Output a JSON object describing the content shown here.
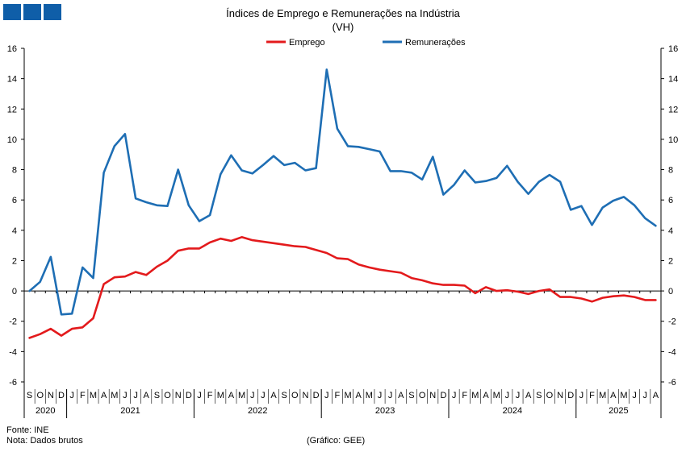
{
  "logo": {
    "squares": [
      "",
      "",
      ""
    ]
  },
  "header": {
    "title": "Índices de Emprego e Remunerações na Indústria",
    "subtitle": "(VH)"
  },
  "footer": {
    "source": "Fonte: INE",
    "note": "Nota: Dados brutos",
    "credit": "(Gráfico: GEE)"
  },
  "chart_data": {
    "type": "line",
    "title": "Índices de Emprego e Remunerações na Indústria",
    "subtitle": "(VH)",
    "xlabel": "",
    "ylabel": "",
    "ylim": [
      -6,
      16
    ],
    "yticks": [
      -6,
      -4,
      -2,
      0,
      2,
      4,
      6,
      8,
      10,
      12,
      14,
      16
    ],
    "legend_position": "top-center",
    "grid": false,
    "months": [
      "S",
      "O",
      "N",
      "D",
      "J",
      "F",
      "M",
      "A",
      "M",
      "J",
      "J",
      "A",
      "S",
      "O",
      "N",
      "D",
      "J",
      "F",
      "M",
      "A",
      "M",
      "J",
      "J",
      "A",
      "S",
      "O",
      "N",
      "D",
      "J",
      "F",
      "M",
      "A",
      "M",
      "J",
      "J",
      "A",
      "S",
      "O",
      "N",
      "D",
      "J",
      "F",
      "M",
      "A",
      "M",
      "J",
      "J",
      "A",
      "S",
      "O",
      "N",
      "D",
      "J",
      "F",
      "M",
      "A",
      "M",
      "J",
      "J",
      "A"
    ],
    "years": [
      {
        "label": "2020",
        "start": 0,
        "end": 3
      },
      {
        "label": "2021",
        "start": 4,
        "end": 15
      },
      {
        "label": "2022",
        "start": 16,
        "end": 27
      },
      {
        "label": "2023",
        "start": 28,
        "end": 39
      },
      {
        "label": "2024",
        "start": 40,
        "end": 51
      },
      {
        "label": "2025",
        "start": 52,
        "end": 59
      }
    ],
    "series": [
      {
        "name": "Emprego",
        "color": "#e31a1c",
        "values": [
          -3.1,
          -2.85,
          -2.5,
          -2.95,
          -2.5,
          -2.4,
          -1.8,
          0.45,
          0.9,
          0.95,
          1.25,
          1.05,
          1.6,
          2.0,
          2.65,
          2.8,
          2.8,
          3.2,
          3.45,
          3.3,
          3.55,
          3.35,
          3.25,
          3.15,
          3.05,
          2.95,
          2.9,
          2.7,
          2.5,
          2.15,
          2.1,
          1.75,
          1.55,
          1.4,
          1.3,
          1.2,
          0.85,
          0.7,
          0.5,
          0.4,
          0.4,
          0.35,
          -0.15,
          0.25,
          0.0,
          0.05,
          -0.05,
          -0.2,
          0.0,
          0.1,
          -0.4,
          -0.4,
          -0.5,
          -0.7,
          -0.45,
          -0.35,
          -0.3,
          -0.4,
          -0.6,
          -0.6
        ]
      },
      {
        "name": "Remunerações",
        "color": "#1e6eb4",
        "values": [
          0.0,
          0.6,
          2.25,
          -1.55,
          -1.5,
          1.55,
          0.85,
          7.8,
          9.55,
          10.35,
          6.1,
          5.85,
          5.65,
          5.6,
          8.0,
          5.65,
          4.6,
          5.0,
          7.7,
          8.95,
          7.95,
          7.75,
          8.3,
          8.9,
          8.3,
          8.45,
          7.95,
          8.1,
          14.6,
          10.7,
          9.55,
          9.5,
          9.35,
          9.2,
          7.9,
          7.9,
          7.8,
          7.35,
          8.85,
          6.35,
          7.0,
          7.95,
          7.15,
          7.25,
          7.45,
          8.25,
          7.2,
          6.4,
          7.2,
          7.65,
          7.2,
          5.35,
          5.6,
          4.35,
          5.5,
          5.95,
          6.2,
          5.65,
          4.8,
          4.3
        ]
      }
    ]
  }
}
